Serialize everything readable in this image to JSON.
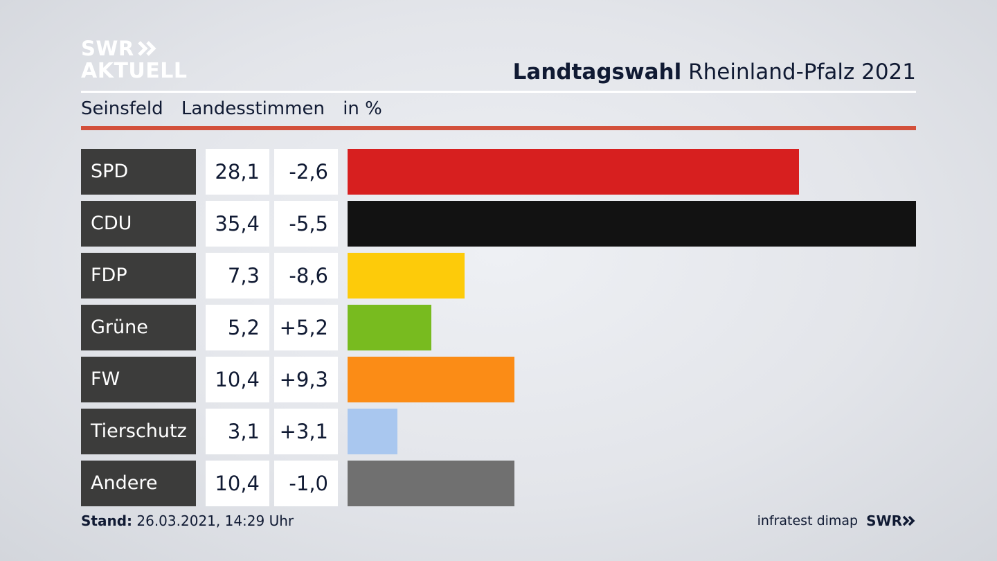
{
  "logo": {
    "line1": "SWR",
    "line2": "AKTUELL"
  },
  "header": {
    "title_bold": "Landtagswahl",
    "title_rest": "Rheinland-Pfalz 2021"
  },
  "subtitle": {
    "place": "Seinsfeld",
    "measure": "Landesstimmen",
    "unit": "in %"
  },
  "footer": {
    "stand_label": "Stand:",
    "stand_value": "26.03.2021, 14:29 Uhr",
    "source": "infratest dimap",
    "brand": "SWR"
  },
  "chart_data": {
    "type": "bar",
    "orientation": "horizontal",
    "categories": [
      "SPD",
      "CDU",
      "FDP",
      "Grüne",
      "FW",
      "Tierschutz",
      "Andere"
    ],
    "values": [
      28.1,
      35.4,
      7.3,
      5.2,
      10.4,
      3.1,
      10.4
    ],
    "value_labels": [
      "28,1",
      "35,4",
      "7,3",
      "5,2",
      "10,4",
      "3,1",
      "10,4"
    ],
    "change_labels": [
      "-2,6",
      "-5,5",
      "-8,6",
      "+5,2",
      "+9,3",
      "+3,1",
      "-1,0"
    ],
    "colors": [
      "#d71f1f",
      "#121212",
      "#fdcb0a",
      "#78bb1f",
      "#fb8c16",
      "#a9c7ef",
      "#707070"
    ],
    "xlim": [
      0,
      35.4
    ],
    "grid": false,
    "legend": "none"
  }
}
